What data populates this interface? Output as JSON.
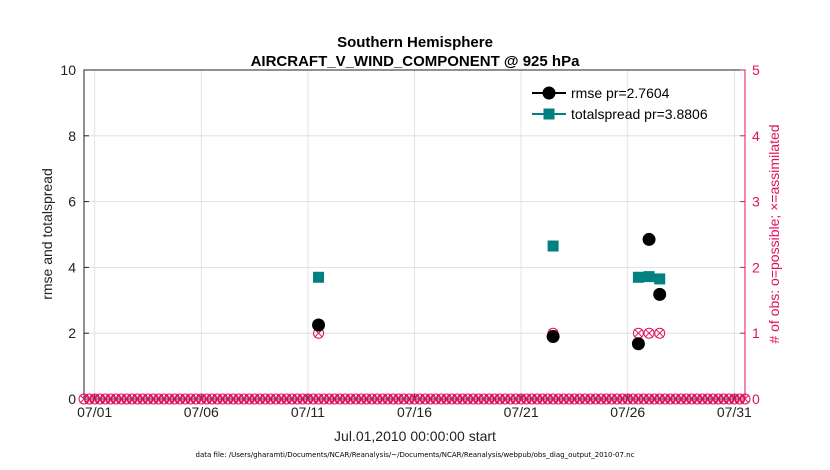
{
  "chart_data": {
    "type": "scatter",
    "title_line1": "Southern Hemisphere",
    "title_line2": "AIRCRAFT_V_WIND_COMPONENT @ 925 hPa",
    "xlabel": "Jul.01,2010 00:00:00 start",
    "ylabel": "rmse and totalspread",
    "ylabel_right": "# of obs: o=possible; ×=assimilated",
    "xlim": [
      0.5,
      31.5
    ],
    "ylim": [
      0,
      10
    ],
    "ylim_right": [
      0,
      5
    ],
    "x_ticks": [
      1,
      6,
      11,
      16,
      21,
      26,
      31
    ],
    "x_tick_labels": [
      "07/01",
      "07/06",
      "07/11",
      "07/16",
      "07/21",
      "07/26",
      "07/31"
    ],
    "y_ticks": [
      0,
      2,
      4,
      6,
      8,
      10
    ],
    "y_tick_labels": [
      "0",
      "2",
      "4",
      "6",
      "8",
      "10"
    ],
    "y_ticks_right": [
      0,
      1,
      2,
      3,
      4,
      5
    ],
    "y_tick_labels_right": [
      "0",
      "1",
      "2",
      "3",
      "4",
      "5"
    ],
    "grid": true,
    "legend_position": "top-right",
    "series": [
      {
        "name": "rmse pr=2.7604",
        "color": "#000000",
        "marker": "circle",
        "x": [
          11.5,
          22.5,
          26.5,
          27.0,
          27.5
        ],
        "y": [
          2.25,
          1.9,
          1.68,
          4.85,
          3.18
        ]
      },
      {
        "name": "totalspread pr=3.8806",
        "color": "#008080",
        "marker": "square",
        "x": [
          11.5,
          22.5,
          26.5,
          27.0,
          27.5
        ],
        "y": [
          3.7,
          4.65,
          3.7,
          3.72,
          3.65
        ]
      }
    ],
    "obs_counts": {
      "color": "#e0115f",
      "x_start": 0.5,
      "x_end": 31.5,
      "x_step": 0.25,
      "nonzero": [
        {
          "x": 11.5,
          "possible": 1,
          "assimilated": 1
        },
        {
          "x": 22.5,
          "possible": 1,
          "assimilated": 1
        },
        {
          "x": 26.5,
          "possible": 1,
          "assimilated": 1
        },
        {
          "x": 27.0,
          "possible": 1,
          "assimilated": 1
        },
        {
          "x": 27.5,
          "possible": 1,
          "assimilated": 1
        }
      ]
    }
  },
  "footer": "data file: /Users/gharamti/Documents/NCAR/Reanalysis/~/Documents/NCAR/Reanalysis/webpub/obs_diag_output_2010-07.nc"
}
